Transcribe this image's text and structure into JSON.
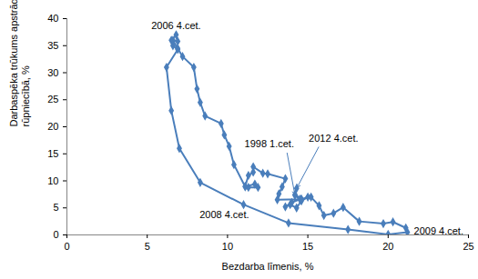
{
  "chart_data": {
    "type": "line",
    "x_label": "Bezdarba līmenis, %",
    "y_label": "Darbaspēka trūkums apstrādes rūpniecībā, %",
    "x": [
      14.2,
      14.5,
      14.0,
      13.6,
      13.9,
      14.3,
      14.6,
      15.0,
      14.6,
      13.1,
      13.2,
      13.4,
      13.6,
      12.5,
      12.2,
      11.6,
      11.6,
      11.3,
      11.1,
      11.3,
      11.9,
      11.7,
      11.1,
      10.4,
      10.1,
      9.8,
      9.6,
      8.6,
      8.3,
      8.1,
      7.9,
      7.2,
      6.9,
      6.6,
      6.9,
      6.8,
      6.5,
      6.6,
      6.9,
      6.2,
      6.5,
      7.0,
      8.3,
      11.0,
      13.8,
      17.5,
      20.0,
      21.2,
      21.1,
      20.3,
      19.7,
      18.2,
      17.2,
      16.6,
      16.0,
      15.7,
      15.2,
      14.6,
      14.2,
      14.3
    ],
    "values": [
      7.3,
      6.6,
      6.0,
      5.2,
      5.6,
      5.0,
      6.3,
      7.0,
      6.6,
      6.5,
      7.6,
      8.9,
      10.4,
      11.3,
      11.4,
      12.6,
      11.6,
      11.0,
      9.0,
      8.8,
      8.8,
      9.4,
      8.9,
      13.0,
      16.4,
      18.5,
      20.6,
      22.0,
      24.5,
      27.0,
      31.0,
      33.0,
      34.5,
      36.0,
      35.8,
      37.0,
      36.0,
      35.0,
      34.3,
      31.0,
      23.0,
      16.0,
      9.7,
      5.6,
      2.2,
      1.0,
      0.1,
      0.5,
      1.3,
      2.4,
      2.1,
      2.5,
      5.1,
      4.0,
      3.6,
      5.4,
      7.0,
      6.6,
      7.5,
      8.6
    ],
    "color": "#4a7ebb",
    "marker": "diamond",
    "xlim": [
      0,
      25
    ],
    "xticks": [
      0,
      5,
      10,
      15,
      20,
      25
    ],
    "ylim": [
      0,
      40
    ],
    "yticks": [
      0,
      5,
      10,
      15,
      20,
      25,
      30,
      35,
      40
    ],
    "grid": false,
    "annotations": [
      {
        "text": "2006 4.cet.",
        "x": 6.8,
        "y": 37.0
      },
      {
        "text": "1998 1.cet.",
        "x": 14.2,
        "y": 7.3
      },
      {
        "text": "2012 4.cet.",
        "x": 14.3,
        "y": 8.6
      },
      {
        "text": "2008 4.cet.",
        "x": 11.0,
        "y": 5.6
      },
      {
        "text": "2009 4.cet.",
        "x": 21.2,
        "y": 0.5
      }
    ]
  }
}
